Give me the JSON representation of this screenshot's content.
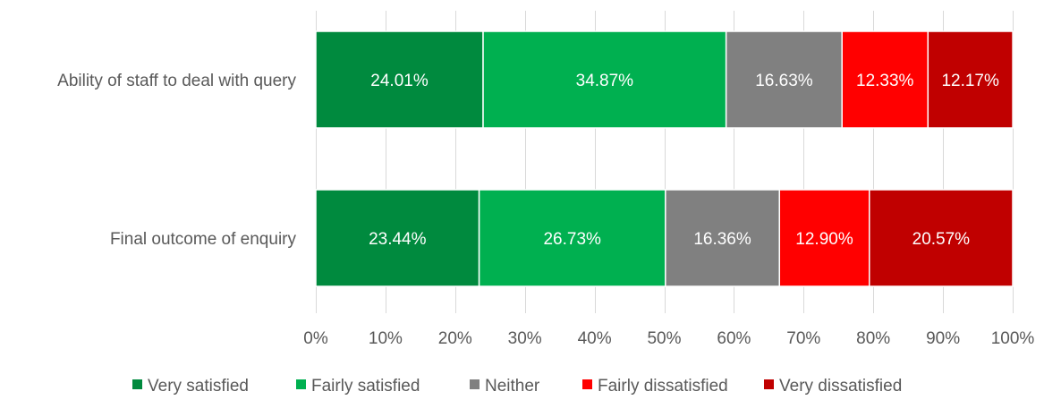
{
  "chart_data": {
    "type": "bar",
    "orientation": "horizontal",
    "stacked": true,
    "percent_stacked": true,
    "categories": [
      "Ability of staff to deal with query",
      "Final outcome of enquiry"
    ],
    "series": [
      {
        "name": "Very satisfied",
        "color": "#008a3e",
        "values": [
          24.01,
          23.44
        ],
        "labels": [
          "24.01%",
          "23.44%"
        ]
      },
      {
        "name": "Fairly satisfied",
        "color": "#00b050",
        "values": [
          34.87,
          26.73
        ],
        "labels": [
          "34.87%",
          "26.73%"
        ]
      },
      {
        "name": "Neither",
        "color": "#808080",
        "values": [
          16.63,
          16.36
        ],
        "labels": [
          "16.63%",
          "16.36%"
        ]
      },
      {
        "name": "Fairly dissatisfied",
        "color": "#ff0000",
        "values": [
          12.33,
          12.9
        ],
        "labels": [
          "12.33%",
          "12.90%"
        ]
      },
      {
        "name": "Very dissatisfied",
        "color": "#c00000",
        "values": [
          12.17,
          20.57
        ],
        "labels": [
          "12.17%",
          "20.57%"
        ]
      }
    ],
    "xlim": [
      0,
      100
    ],
    "x_ticks": [
      0,
      10,
      20,
      30,
      40,
      50,
      60,
      70,
      80,
      90,
      100
    ],
    "x_tick_labels": [
      "0%",
      "10%",
      "20%",
      "30%",
      "40%",
      "50%",
      "60%",
      "70%",
      "80%",
      "90%",
      "100%"
    ],
    "grid": true,
    "legend_position": "bottom",
    "title": "",
    "xlabel": "",
    "ylabel": ""
  }
}
